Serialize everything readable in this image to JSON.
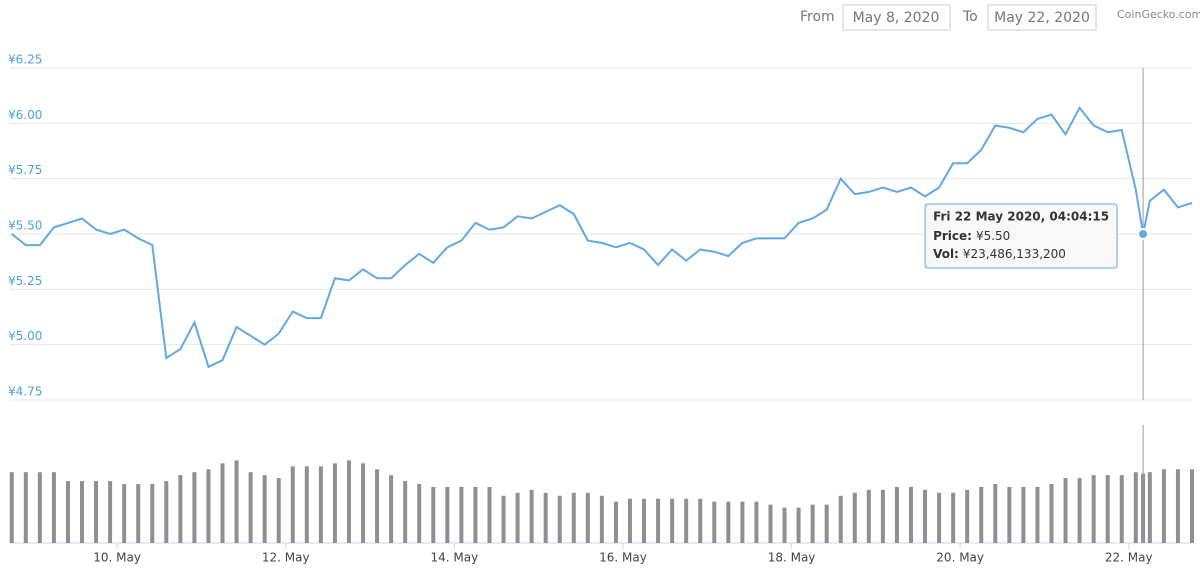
{
  "header": {
    "from_label": "From",
    "from_date": "May 8, 2020",
    "to_label": "To",
    "to_date": "May 22, 2020",
    "brand": "CoinGecko.com"
  },
  "chart_data": {
    "type": "line",
    "x": [
      "2020-05-08T18:00",
      "2020-05-08T22:00",
      "2020-05-09T02:00",
      "2020-05-09T06:00",
      "2020-05-09T10:00",
      "2020-05-09T14:00",
      "2020-05-09T18:00",
      "2020-05-09T22:00",
      "2020-05-10T02:00",
      "2020-05-10T06:00",
      "2020-05-10T10:00",
      "2020-05-10T14:00",
      "2020-05-10T18:00",
      "2020-05-10T22:00",
      "2020-05-11T02:00",
      "2020-05-11T06:00",
      "2020-05-11T10:00",
      "2020-05-11T14:00",
      "2020-05-11T18:00",
      "2020-05-11T22:00",
      "2020-05-12T02:00",
      "2020-05-12T06:00",
      "2020-05-12T10:00",
      "2020-05-12T14:00",
      "2020-05-12T18:00",
      "2020-05-12T22:00",
      "2020-05-13T02:00",
      "2020-05-13T06:00",
      "2020-05-13T10:00",
      "2020-05-13T14:00",
      "2020-05-13T18:00",
      "2020-05-13T22:00",
      "2020-05-14T02:00",
      "2020-05-14T06:00",
      "2020-05-14T10:00",
      "2020-05-14T14:00",
      "2020-05-14T18:00",
      "2020-05-14T22:00",
      "2020-05-15T02:00",
      "2020-05-15T06:00",
      "2020-05-15T10:00",
      "2020-05-15T14:00",
      "2020-05-15T18:00",
      "2020-05-15T22:00",
      "2020-05-16T02:00",
      "2020-05-16T06:00",
      "2020-05-16T10:00",
      "2020-05-16T14:00",
      "2020-05-16T18:00",
      "2020-05-16T22:00",
      "2020-05-17T02:00",
      "2020-05-17T06:00",
      "2020-05-17T10:00",
      "2020-05-17T14:00",
      "2020-05-17T18:00",
      "2020-05-17T22:00",
      "2020-05-18T02:00",
      "2020-05-18T06:00",
      "2020-05-18T10:00",
      "2020-05-18T14:00",
      "2020-05-18T18:00",
      "2020-05-18T22:00",
      "2020-05-19T02:00",
      "2020-05-19T06:00",
      "2020-05-19T10:00",
      "2020-05-19T14:00",
      "2020-05-19T18:00",
      "2020-05-19T22:00",
      "2020-05-20T02:00",
      "2020-05-20T06:00",
      "2020-05-20T10:00",
      "2020-05-20T14:00",
      "2020-05-20T18:00",
      "2020-05-20T22:00",
      "2020-05-21T02:00",
      "2020-05-21T06:00",
      "2020-05-21T10:00",
      "2020-05-21T14:00",
      "2020-05-21T18:00",
      "2020-05-21T22:00",
      "2020-05-22T02:00",
      "2020-05-22T04:04:15",
      "2020-05-22T06:00",
      "2020-05-22T10:00",
      "2020-05-22T14:00",
      "2020-05-22T18:00"
    ],
    "series": [
      {
        "color": "#62a8e5",
        "values": [
          5.5,
          5.45,
          5.45,
          5.53,
          5.55,
          5.57,
          5.52,
          5.5,
          5.52,
          5.48,
          5.45,
          4.94,
          4.98,
          5.1,
          4.9,
          4.93,
          5.08,
          5.04,
          5.0,
          5.05,
          5.15,
          5.12,
          5.12,
          5.3,
          5.29,
          5.34,
          5.3,
          5.3,
          5.36,
          5.41,
          5.37,
          5.44,
          5.47,
          5.55,
          5.52,
          5.53,
          5.58,
          5.57,
          5.6,
          5.63,
          5.59,
          5.47,
          5.46,
          5.44,
          5.46,
          5.43,
          5.36,
          5.43,
          5.38,
          5.43,
          5.42,
          5.4,
          5.46,
          5.48,
          5.48,
          5.48,
          5.55,
          5.57,
          5.61,
          5.75,
          5.68,
          5.69,
          5.71,
          5.69,
          5.71,
          5.67,
          5.71,
          5.82,
          5.82,
          5.88,
          5.99,
          5.98,
          5.96,
          6.02,
          6.04,
          5.95,
          6.07,
          5.99,
          5.96,
          5.97,
          5.7,
          5.5,
          5.65,
          5.7,
          5.62,
          5.64
        ]
      }
    ],
    "volume": {
      "color": "#8f8f8f",
      "ylim": [
        0,
        40000000000
      ],
      "values": [
        24000000000,
        24000000000,
        24000000000,
        24000000000,
        21000000000,
        21000000000,
        21000000000,
        21000000000,
        20000000000,
        20000000000,
        20000000000,
        21000000000,
        23000000000,
        24000000000,
        25000000000,
        27000000000,
        28000000000,
        24000000000,
        23000000000,
        22000000000,
        26000000000,
        26000000000,
        26000000000,
        27000000000,
        28000000000,
        27000000000,
        25000000000,
        23000000000,
        21000000000,
        20000000000,
        19000000000,
        19000000000,
        19000000000,
        19000000000,
        19000000000,
        16000000000,
        17000000000,
        18000000000,
        17000000000,
        16000000000,
        17000000000,
        17000000000,
        16000000000,
        14000000000,
        15000000000,
        15000000000,
        15000000000,
        15000000000,
        15000000000,
        15000000000,
        14000000000,
        14000000000,
        14000000000,
        14000000000,
        13000000000,
        12000000000,
        12000000000,
        13000000000,
        13000000000,
        16000000000,
        17000000000,
        18000000000,
        18000000000,
        19000000000,
        19000000000,
        18000000000,
        17000000000,
        17000000000,
        18000000000,
        19000000000,
        20000000000,
        19000000000,
        19000000000,
        19000000000,
        20000000000,
        22000000000,
        22000000000,
        23000000000,
        23000000000,
        23000000000,
        24000000000,
        23486133200,
        24000000000,
        25000000000,
        25000000000,
        25000000000
      ]
    },
    "xlim": [
      "2020-05-08T17:30",
      "2020-05-22T18:00"
    ],
    "xticks": [
      {
        "value": "2020-05-10T00:00",
        "label": "10. May"
      },
      {
        "value": "2020-05-12T00:00",
        "label": "12. May"
      },
      {
        "value": "2020-05-14T00:00",
        "label": "14. May"
      },
      {
        "value": "2020-05-16T00:00",
        "label": "16. May"
      },
      {
        "value": "2020-05-18T00:00",
        "label": "18. May"
      },
      {
        "value": "2020-05-20T00:00",
        "label": "20. May"
      },
      {
        "value": "2020-05-22T00:00",
        "label": "22. May"
      }
    ],
    "ylim": [
      4.75,
      6.25
    ],
    "yticks": [
      {
        "value": 4.75,
        "label": "¥4.75"
      },
      {
        "value": 5.0,
        "label": "¥5.00"
      },
      {
        "value": 5.25,
        "label": "¥5.25"
      },
      {
        "value": 5.5,
        "label": "¥5.50"
      },
      {
        "value": 5.75,
        "label": "¥5.75"
      },
      {
        "value": 6.0,
        "label": "¥6.00"
      },
      {
        "value": 6.25,
        "label": "¥6.25"
      }
    ],
    "grid": true,
    "tooltip": {
      "date": "Fri 22 May 2020, 04:04:15",
      "price_label": "Price:",
      "price": "¥5.50",
      "vol_label": "Vol:",
      "vol": "¥23,486,133,200"
    }
  }
}
